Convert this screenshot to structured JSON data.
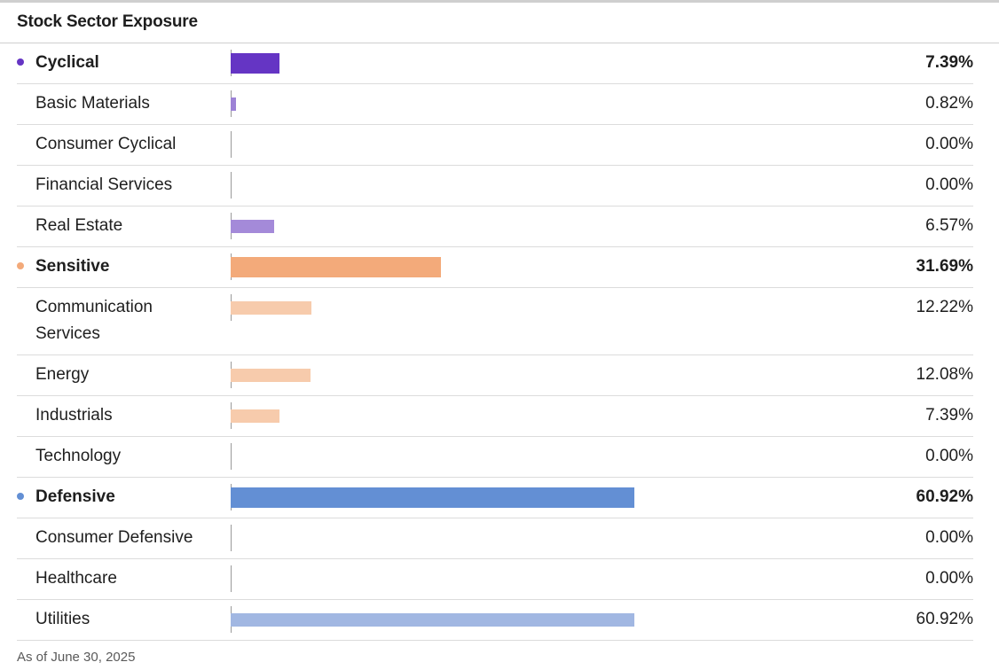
{
  "title": "Stock Sector Exposure",
  "footer": "As of June 30, 2025",
  "chart_data": {
    "type": "bar",
    "orientation": "horizontal",
    "unit": "%",
    "max_scale_percent": 75,
    "rows": [
      {
        "label": "Cyclical",
        "value": 7.39,
        "display": "7.39%",
        "group": true,
        "color": "#6535c4",
        "dot": "#6535c4"
      },
      {
        "label": "Basic Materials",
        "value": 0.82,
        "display": "0.82%",
        "group": false,
        "color": "#9d82d6"
      },
      {
        "label": "Consumer Cyclical",
        "value": 0.0,
        "display": "0.00%",
        "group": false,
        "color": "#9d82d6"
      },
      {
        "label": "Financial Services",
        "value": 0.0,
        "display": "0.00%",
        "group": false,
        "color": "#9d82d6"
      },
      {
        "label": "Real Estate",
        "value": 6.57,
        "display": "6.57%",
        "group": false,
        "color": "#a48ad9"
      },
      {
        "label": "Sensitive",
        "value": 31.69,
        "display": "31.69%",
        "group": true,
        "color": "#f3aa7a",
        "dot": "#f3aa7a"
      },
      {
        "label": "Communication Services",
        "value": 12.22,
        "display": "12.22%",
        "group": false,
        "color": "#f7cbac"
      },
      {
        "label": "Energy",
        "value": 12.08,
        "display": "12.08%",
        "group": false,
        "color": "#f7cbac"
      },
      {
        "label": "Industrials",
        "value": 7.39,
        "display": "7.39%",
        "group": false,
        "color": "#f7cbac"
      },
      {
        "label": "Technology",
        "value": 0.0,
        "display": "0.00%",
        "group": false,
        "color": "#f7cbac"
      },
      {
        "label": "Defensive",
        "value": 60.92,
        "display": "60.92%",
        "group": true,
        "color": "#638fd4",
        "dot": "#638fd4"
      },
      {
        "label": "Consumer Defensive",
        "value": 0.0,
        "display": "0.00%",
        "group": false,
        "color": "#a1b7e2"
      },
      {
        "label": "Healthcare",
        "value": 0.0,
        "display": "0.00%",
        "group": false,
        "color": "#a1b7e2"
      },
      {
        "label": "Utilities",
        "value": 60.92,
        "display": "60.92%",
        "group": false,
        "color": "#a1b7e2"
      }
    ]
  }
}
